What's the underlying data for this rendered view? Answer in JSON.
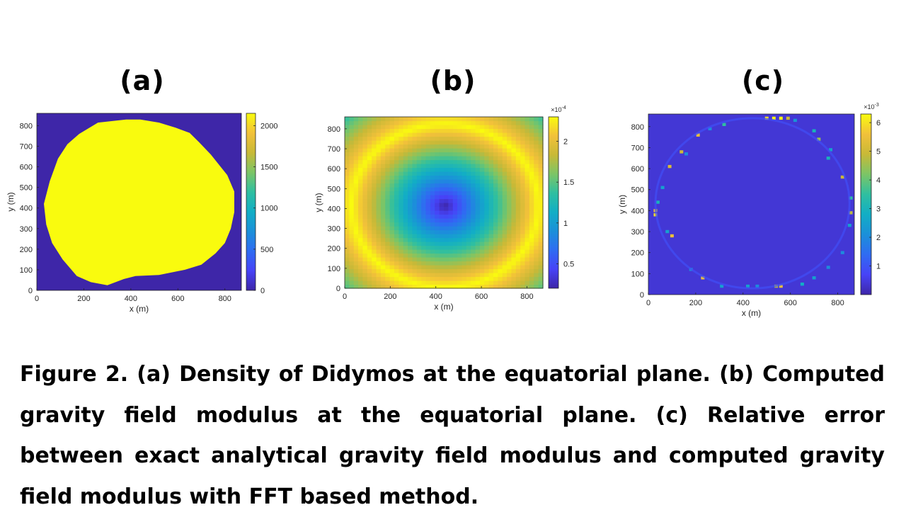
{
  "panels": [
    {
      "label": "(a)"
    },
    {
      "label": "(b)"
    },
    {
      "label": "(c)"
    }
  ],
  "chart_data": [
    {
      "type": "heatmap",
      "panel": "(a)",
      "xlabel": "x (m)",
      "ylabel": "y (m)",
      "xlim": [
        0,
        870
      ],
      "ylim": [
        0,
        860
      ],
      "xticks": [
        0,
        200,
        400,
        600,
        800
      ],
      "yticks": [
        0,
        100,
        200,
        300,
        400,
        500,
        600,
        700,
        800
      ],
      "colorbar": {
        "min": 0,
        "max": 2150,
        "ticks": [
          0,
          500,
          1000,
          1500,
          2000
        ],
        "exponent": ""
      },
      "colormap": "parula",
      "field": "density",
      "description_values": {
        "inside_body": 2150,
        "outside_body": 0
      },
      "outline_points": [
        [
          30,
          420
        ],
        [
          55,
          530
        ],
        [
          90,
          640
        ],
        [
          130,
          710
        ],
        [
          180,
          760
        ],
        [
          260,
          815
        ],
        [
          380,
          830
        ],
        [
          440,
          830
        ],
        [
          520,
          815
        ],
        [
          590,
          790
        ],
        [
          650,
          765
        ],
        [
          690,
          720
        ],
        [
          740,
          660
        ],
        [
          810,
          560
        ],
        [
          840,
          480
        ],
        [
          840,
          380
        ],
        [
          825,
          300
        ],
        [
          800,
          230
        ],
        [
          760,
          180
        ],
        [
          700,
          125
        ],
        [
          630,
          100
        ],
        [
          520,
          75
        ],
        [
          420,
          70
        ],
        [
          370,
          55
        ],
        [
          300,
          25
        ],
        [
          230,
          40
        ],
        [
          170,
          70
        ],
        [
          110,
          150
        ],
        [
          65,
          230
        ],
        [
          40,
          320
        ],
        [
          30,
          420
        ]
      ]
    },
    {
      "type": "heatmap",
      "panel": "(b)",
      "xlabel": "x (m)",
      "ylabel": "y (m)",
      "xlim": [
        0,
        870
      ],
      "ylim": [
        0,
        860
      ],
      "xticks": [
        0,
        200,
        400,
        600,
        800
      ],
      "yticks": [
        0,
        100,
        200,
        300,
        400,
        500,
        600,
        700,
        800
      ],
      "colorbar": {
        "min": 0.2,
        "max": 2.3,
        "ticks": [
          0.5,
          1,
          1.5,
          2
        ],
        "exponent": "×10-4"
      },
      "colormap": "parula",
      "field": "gravity field modulus",
      "center": [
        440,
        415
      ],
      "peak_radius": 410
    },
    {
      "type": "heatmap",
      "panel": "(c)",
      "xlabel": "x (m)",
      "ylabel": "y (m)",
      "xlim": [
        0,
        870
      ],
      "ylim": [
        0,
        860
      ],
      "xticks": [
        0,
        200,
        400,
        600,
        800
      ],
      "yticks": [
        0,
        100,
        200,
        300,
        400,
        500,
        600,
        700,
        800
      ],
      "colorbar": {
        "min": 0,
        "max": 6.3,
        "ticks": [
          1,
          2,
          3,
          4,
          5,
          6
        ],
        "exponent": "×10-3"
      },
      "colormap": "parula",
      "field": "relative error",
      "background_value": 0.4,
      "boundary_pixels": [
        [
          530,
          840,
          6.2
        ],
        [
          560,
          840,
          6.2
        ],
        [
          500,
          840,
          6.0
        ],
        [
          590,
          840,
          5.0
        ],
        [
          30,
          380,
          6.0
        ],
        [
          30,
          400,
          5.5
        ],
        [
          855,
          390,
          4.8
        ],
        [
          855,
          460,
          3.5
        ],
        [
          820,
          560,
          5.0
        ],
        [
          100,
          280,
          5.5
        ],
        [
          140,
          680,
          5.0
        ],
        [
          90,
          610,
          5.2
        ],
        [
          210,
          760,
          5.5
        ],
        [
          720,
          740,
          4.5
        ],
        [
          760,
          650,
          3.0
        ],
        [
          230,
          80,
          5.5
        ],
        [
          560,
          40,
          5.5
        ],
        [
          540,
          40,
          4.8
        ],
        [
          420,
          40,
          2.5
        ],
        [
          650,
          50,
          2.8
        ],
        [
          310,
          40,
          2.5
        ],
        [
          180,
          120,
          2.0
        ],
        [
          60,
          510,
          2.5
        ],
        [
          40,
          440,
          3.0
        ],
        [
          80,
          300,
          2.5
        ],
        [
          160,
          670,
          2.0
        ],
        [
          260,
          790,
          2.0
        ],
        [
          320,
          810,
          3.5
        ],
        [
          620,
          830,
          2.2
        ],
        [
          700,
          780,
          3.0
        ],
        [
          770,
          690,
          2.5
        ],
        [
          850,
          330,
          2.5
        ],
        [
          820,
          200,
          2.0
        ],
        [
          760,
          130,
          2.0
        ],
        [
          700,
          80,
          2.5
        ],
        [
          460,
          40,
          2.0
        ]
      ]
    }
  ],
  "caption": "Figure 2. (a) Density of Didymos at the equatorial plane. (b) Computed gravity field modulus at the equatorial plane. (c) Relative error between exact analytical gravity field modulus and computed gravity field modulus with FFT based method."
}
